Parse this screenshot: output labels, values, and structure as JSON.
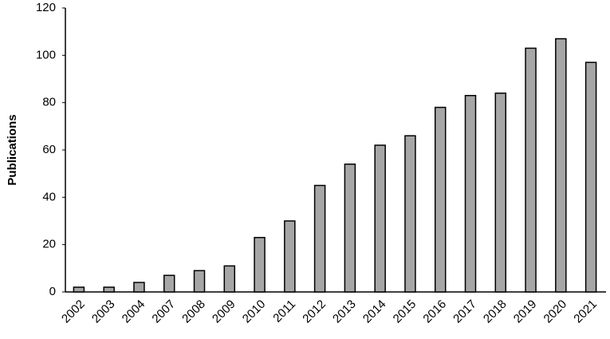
{
  "chart_data": {
    "type": "bar",
    "y_label": "Publications",
    "categories": [
      "2002",
      "2003",
      "2004",
      "2007",
      "2008",
      "2009",
      "2010",
      "2011",
      "2012",
      "2013",
      "2014",
      "2015",
      "2016",
      "2017",
      "2018",
      "2019",
      "2020",
      "2021"
    ],
    "values": [
      2,
      2,
      4,
      7,
      9,
      11,
      23,
      30,
      45,
      54,
      62,
      66,
      78,
      83,
      84,
      103,
      107,
      97
    ],
    "color": "#a6a6a6",
    "ylim": [
      0,
      120
    ],
    "yticks": [
      0,
      20,
      40,
      60,
      80,
      100,
      120
    ],
    "grid": false
  }
}
